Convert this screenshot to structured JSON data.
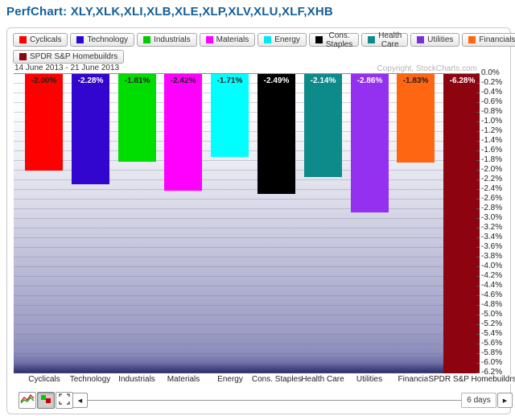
{
  "title": "PerfChart: XLY,XLK,XLI,XLB,XLE,XLP,XLV,XLU,XLF,XHB",
  "legend": {
    "row1": [
      {
        "label": "Cyclicals",
        "color": "#ff0000"
      },
      {
        "label": "Technology",
        "color": "#2e06cf"
      },
      {
        "label": "Industrials",
        "color": "#00cc00"
      },
      {
        "label": "Materials",
        "color": "#ff00ff"
      },
      {
        "label": "Energy",
        "color": "#00e8f0"
      },
      {
        "label": "Cons. Staples",
        "color": "#000000"
      },
      {
        "label": "Health Care",
        "color": "#0d8a8a"
      },
      {
        "label": "Utilities",
        "color": "#7a2fd8"
      },
      {
        "label": "Financials",
        "color": "#ff6611"
      }
    ],
    "row2": [
      {
        "label": "SPDR S&P Homebuildrs",
        "color": "#8e0310"
      }
    ]
  },
  "chart": {
    "date_range": "14 June 2013 - 21 June 2013",
    "copyright": "Copyright, StockCharts.com"
  },
  "chart_data": {
    "type": "bar",
    "title": "PerfChart: XLY,XLK,XLI,XLB,XLE,XLP,XLV,XLU,XLF,XHB",
    "period_shown": "14 June 2013 - 21 June 2013",
    "categories": [
      "Cyclicals",
      "Technology",
      "Industrials",
      "Materials",
      "Energy",
      "Cons. Staples",
      "Health Care",
      "Utilities",
      "Financials",
      "SPDR S&P Homebuildrs"
    ],
    "values": [
      -2.0,
      -2.28,
      -1.81,
      -2.42,
      -1.71,
      -2.49,
      -2.14,
      -2.86,
      -1.83,
      -6.28
    ],
    "value_labels": [
      "-2.00%",
      "-2.28%",
      "-1.81%",
      "-2.42%",
      "-1.71%",
      "-2.49%",
      "-2.14%",
      "-2.86%",
      "-1.83%",
      "-6.28%"
    ],
    "bar_colors": [
      "#ff0000",
      "#3306cf",
      "#00dd00",
      "#ff00ff",
      "#00ffff",
      "#000000",
      "#0d8a8a",
      "#9430f0",
      "#ff6611",
      "#8e0310"
    ],
    "value_text_colors": [
      "#222222",
      "#ffffff",
      "#222222",
      "#222222",
      "#222222",
      "#ffffff",
      "#ffffff",
      "#ffffff",
      "#222222",
      "#ffffff"
    ],
    "y_ticks": [
      "0.0%",
      "-0.2%",
      "-0.4%",
      "-0.6%",
      "-0.8%",
      "-1.0%",
      "-1.2%",
      "-1.4%",
      "-1.6%",
      "-1.8%",
      "-2.0%",
      "-2.2%",
      "-2.4%",
      "-2.6%",
      "-2.8%",
      "-3.0%",
      "-3.2%",
      "-3.4%",
      "-3.6%",
      "-3.8%",
      "-4.0%",
      "-4.2%",
      "-4.4%",
      "-4.6%",
      "-4.8%",
      "-5.0%",
      "-5.2%",
      "-5.4%",
      "-5.6%",
      "-5.8%",
      "-6.0%",
      "-6.2%"
    ],
    "ylim": [
      -6.2,
      0.0
    ],
    "grid": true,
    "legend_position": "top",
    "background": "white-to-purple vertical gradient"
  },
  "footer": {
    "period_value": "6 days",
    "icons": [
      "line-chart-icon",
      "histogram-icon",
      "fullscreen-icon",
      "left-arrow-icon",
      "right-arrow-icon"
    ]
  }
}
